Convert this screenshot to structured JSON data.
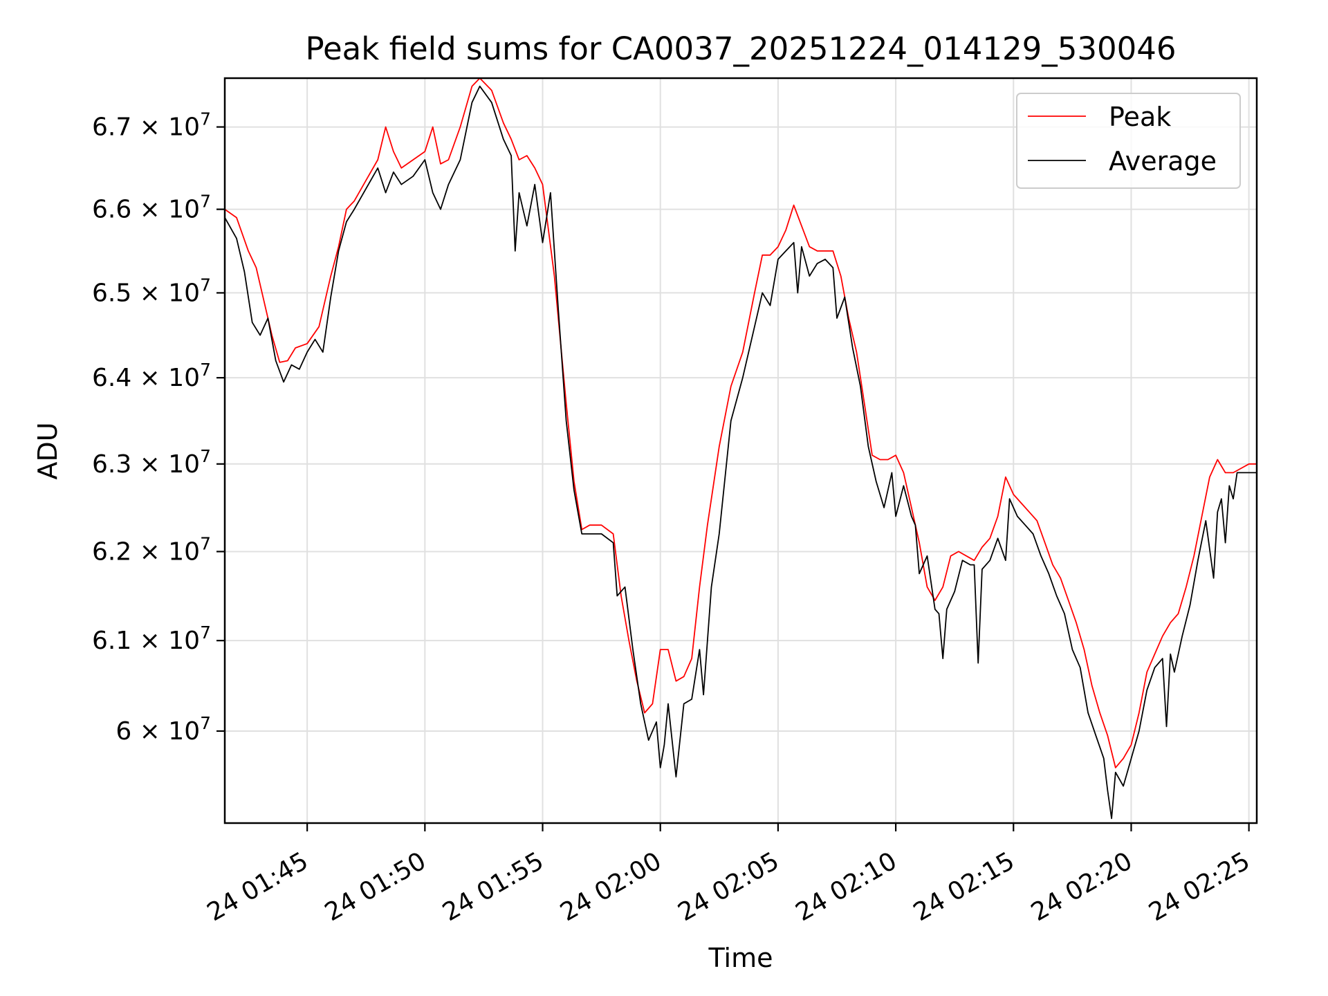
{
  "chart_data": {
    "type": "line",
    "title": "Peak field sums for CA0037_20251224_014129_530046",
    "xlabel": "Time",
    "ylabel": "ADU",
    "grid": true,
    "legend_position": "top-right",
    "xlim": [
      "01:41:30",
      "02:25:20"
    ],
    "ylim": [
      59000000,
      67600000
    ],
    "x_ticks": [
      {
        "time": "01:45",
        "label": "24 01:45"
      },
      {
        "time": "01:50",
        "label": "24 01:50"
      },
      {
        "time": "01:55",
        "label": "24 01:55"
      },
      {
        "time": "02:00",
        "label": "24 02:00"
      },
      {
        "time": "02:05",
        "label": "24 02:05"
      },
      {
        "time": "02:10",
        "label": "24 02:10"
      },
      {
        "time": "02:15",
        "label": "24 02:15"
      },
      {
        "time": "02:20",
        "label": "24 02:20"
      },
      {
        "time": "02:25",
        "label": "24 02:25"
      }
    ],
    "y_ticks": [
      {
        "value": 60000000,
        "mantissa": "6",
        "exponent": "7"
      },
      {
        "value": 61000000,
        "mantissa": "6.1",
        "exponent": "7"
      },
      {
        "value": 62000000,
        "mantissa": "6.2",
        "exponent": "7"
      },
      {
        "value": 63000000,
        "mantissa": "6.3",
        "exponent": "7"
      },
      {
        "value": 64000000,
        "mantissa": "6.4",
        "exponent": "7"
      },
      {
        "value": 65000000,
        "mantissa": "6.5",
        "exponent": "7"
      },
      {
        "value": 66000000,
        "mantissa": "6.6",
        "exponent": "7"
      },
      {
        "value": 67000000,
        "mantissa": "6.7",
        "exponent": "7"
      }
    ],
    "series": [
      {
        "name": "Peak",
        "color": "#ff0000",
        "points": [
          [
            "01:41:30",
            66.0
          ],
          [
            "01:42:00",
            65.9
          ],
          [
            "01:42:30",
            65.5
          ],
          [
            "01:42:50",
            65.3
          ],
          [
            "01:43:10",
            64.9
          ],
          [
            "01:43:30",
            64.5
          ],
          [
            "01:43:50",
            64.18
          ],
          [
            "01:44:10",
            64.2
          ],
          [
            "01:44:30",
            64.35
          ],
          [
            "01:45:00",
            64.4
          ],
          [
            "01:45:30",
            64.6
          ],
          [
            "01:46:00",
            65.2
          ],
          [
            "01:46:20",
            65.55
          ],
          [
            "01:46:40",
            66.0
          ],
          [
            "01:47:00",
            66.1
          ],
          [
            "01:47:30",
            66.35
          ],
          [
            "01:48:00",
            66.6
          ],
          [
            "01:48:20",
            67.0
          ],
          [
            "01:48:40",
            66.7
          ],
          [
            "01:49:00",
            66.5
          ],
          [
            "01:49:30",
            66.6
          ],
          [
            "01:50:00",
            66.7
          ],
          [
            "01:50:20",
            67.0
          ],
          [
            "01:50:40",
            66.55
          ],
          [
            "01:51:00",
            66.6
          ],
          [
            "01:51:30",
            67.0
          ],
          [
            "01:52:00",
            67.5
          ],
          [
            "01:52:20",
            67.6
          ],
          [
            "01:52:50",
            67.45
          ],
          [
            "01:53:20",
            67.05
          ],
          [
            "01:53:40",
            66.85
          ],
          [
            "01:54:00",
            66.6
          ],
          [
            "01:54:20",
            66.65
          ],
          [
            "01:54:40",
            66.5
          ],
          [
            "01:55:00",
            66.3
          ],
          [
            "01:55:30",
            65.2
          ],
          [
            "01:56:00",
            63.7
          ],
          [
            "01:56:20",
            62.8
          ],
          [
            "01:56:40",
            62.25
          ],
          [
            "01:57:00",
            62.3
          ],
          [
            "01:57:30",
            62.3
          ],
          [
            "01:58:00",
            62.2
          ],
          [
            "01:58:20",
            61.5
          ],
          [
            "01:58:40",
            61.0
          ],
          [
            "01:59:00",
            60.55
          ],
          [
            "01:59:20",
            60.2
          ],
          [
            "01:59:40",
            60.3
          ],
          [
            "02:00:00",
            60.9
          ],
          [
            "02:00:20",
            60.9
          ],
          [
            "02:00:40",
            60.55
          ],
          [
            "02:01:00",
            60.6
          ],
          [
            "02:01:20",
            60.8
          ],
          [
            "02:01:40",
            61.6
          ],
          [
            "02:02:00",
            62.3
          ],
          [
            "02:02:30",
            63.2
          ],
          [
            "02:03:00",
            63.9
          ],
          [
            "02:03:30",
            64.3
          ],
          [
            "02:04:00",
            65.0
          ],
          [
            "02:04:20",
            65.45
          ],
          [
            "02:04:40",
            65.45
          ],
          [
            "02:05:00",
            65.55
          ],
          [
            "02:05:20",
            65.75
          ],
          [
            "02:05:40",
            66.05
          ],
          [
            "02:06:00",
            65.8
          ],
          [
            "02:06:20",
            65.55
          ],
          [
            "02:06:40",
            65.5
          ],
          [
            "02:07:00",
            65.5
          ],
          [
            "02:07:20",
            65.5
          ],
          [
            "02:07:40",
            65.2
          ],
          [
            "02:08:00",
            64.7
          ],
          [
            "02:08:20",
            64.3
          ],
          [
            "02:08:40",
            63.7
          ],
          [
            "02:09:00",
            63.1
          ],
          [
            "02:09:20",
            63.05
          ],
          [
            "02:09:40",
            63.05
          ],
          [
            "02:10:00",
            63.1
          ],
          [
            "02:10:20",
            62.9
          ],
          [
            "02:10:40",
            62.5
          ],
          [
            "02:11:00",
            62.1
          ],
          [
            "02:11:20",
            61.6
          ],
          [
            "02:11:40",
            61.45
          ],
          [
            "02:12:00",
            61.6
          ],
          [
            "02:12:20",
            61.95
          ],
          [
            "02:12:40",
            62.0
          ],
          [
            "02:13:00",
            61.95
          ],
          [
            "02:13:20",
            61.9
          ],
          [
            "02:13:40",
            62.05
          ],
          [
            "02:14:00",
            62.15
          ],
          [
            "02:14:20",
            62.4
          ],
          [
            "02:14:40",
            62.85
          ],
          [
            "02:15:00",
            62.65
          ],
          [
            "02:15:20",
            62.55
          ],
          [
            "02:15:40",
            62.45
          ],
          [
            "02:16:00",
            62.35
          ],
          [
            "02:16:20",
            62.1
          ],
          [
            "02:16:40",
            61.85
          ],
          [
            "02:17:00",
            61.7
          ],
          [
            "02:17:20",
            61.45
          ],
          [
            "02:17:40",
            61.2
          ],
          [
            "02:18:00",
            60.9
          ],
          [
            "02:18:20",
            60.5
          ],
          [
            "02:18:40",
            60.2
          ],
          [
            "02:19:00",
            59.95
          ],
          [
            "02:19:20",
            59.6
          ],
          [
            "02:19:40",
            59.7
          ],
          [
            "02:20:00",
            59.85
          ],
          [
            "02:20:20",
            60.2
          ],
          [
            "02:20:40",
            60.65
          ],
          [
            "02:21:00",
            60.85
          ],
          [
            "02:21:20",
            61.05
          ],
          [
            "02:21:40",
            61.2
          ],
          [
            "02:22:00",
            61.3
          ],
          [
            "02:22:20",
            61.6
          ],
          [
            "02:22:40",
            61.95
          ],
          [
            "02:23:00",
            62.4
          ],
          [
            "02:23:20",
            62.85
          ],
          [
            "02:23:40",
            63.05
          ],
          [
            "02:24:00",
            62.9
          ],
          [
            "02:24:20",
            62.9
          ],
          [
            "02:24:40",
            62.95
          ],
          [
            "02:25:00",
            63.0
          ],
          [
            "02:25:20",
            63.0
          ]
        ]
      },
      {
        "name": "Average",
        "color": "#000000",
        "points": [
          [
            "01:41:30",
            65.9
          ],
          [
            "01:42:00",
            65.65
          ],
          [
            "01:42:20",
            65.25
          ],
          [
            "01:42:40",
            64.65
          ],
          [
            "01:43:00",
            64.5
          ],
          [
            "01:43:20",
            64.7
          ],
          [
            "01:43:40",
            64.2
          ],
          [
            "01:44:00",
            63.95
          ],
          [
            "01:44:20",
            64.15
          ],
          [
            "01:44:40",
            64.1
          ],
          [
            "01:45:00",
            64.3
          ],
          [
            "01:45:20",
            64.45
          ],
          [
            "01:45:40",
            64.3
          ],
          [
            "01:46:00",
            64.95
          ],
          [
            "01:46:20",
            65.5
          ],
          [
            "01:46:40",
            65.85
          ],
          [
            "01:47:00",
            66.0
          ],
          [
            "01:47:30",
            66.25
          ],
          [
            "01:48:00",
            66.5
          ],
          [
            "01:48:20",
            66.2
          ],
          [
            "01:48:40",
            66.45
          ],
          [
            "01:49:00",
            66.3
          ],
          [
            "01:49:30",
            66.4
          ],
          [
            "01:50:00",
            66.6
          ],
          [
            "01:50:20",
            66.2
          ],
          [
            "01:50:40",
            66.0
          ],
          [
            "01:51:00",
            66.3
          ],
          [
            "01:51:30",
            66.6
          ],
          [
            "01:52:00",
            67.3
          ],
          [
            "01:52:20",
            67.5
          ],
          [
            "01:52:50",
            67.3
          ],
          [
            "01:53:20",
            66.85
          ],
          [
            "01:53:40",
            66.65
          ],
          [
            "01:53:50",
            65.5
          ],
          [
            "01:54:00",
            66.2
          ],
          [
            "01:54:20",
            65.8
          ],
          [
            "01:54:40",
            66.3
          ],
          [
            "01:55:00",
            65.6
          ],
          [
            "01:55:20",
            66.2
          ],
          [
            "01:55:40",
            64.8
          ],
          [
            "01:56:00",
            63.5
          ],
          [
            "01:56:20",
            62.7
          ],
          [
            "01:56:40",
            62.2
          ],
          [
            "01:57:00",
            62.2
          ],
          [
            "01:57:30",
            62.2
          ],
          [
            "01:58:00",
            62.1
          ],
          [
            "01:58:10",
            61.5
          ],
          [
            "01:58:30",
            61.6
          ],
          [
            "01:58:50",
            60.9
          ],
          [
            "01:59:10",
            60.3
          ],
          [
            "01:59:30",
            59.9
          ],
          [
            "01:59:50",
            60.1
          ],
          [
            "02:00:00",
            59.6
          ],
          [
            "02:00:10",
            59.85
          ],
          [
            "02:00:20",
            60.3
          ],
          [
            "02:00:40",
            59.5
          ],
          [
            "02:01:00",
            60.3
          ],
          [
            "02:01:20",
            60.35
          ],
          [
            "02:01:40",
            60.9
          ],
          [
            "02:01:50",
            60.4
          ],
          [
            "02:02:10",
            61.6
          ],
          [
            "02:02:30",
            62.2
          ],
          [
            "02:03:00",
            63.5
          ],
          [
            "02:03:30",
            64.0
          ],
          [
            "02:04:00",
            64.6
          ],
          [
            "02:04:20",
            65.0
          ],
          [
            "02:04:40",
            64.85
          ],
          [
            "02:05:00",
            65.4
          ],
          [
            "02:05:20",
            65.5
          ],
          [
            "02:05:40",
            65.6
          ],
          [
            "02:05:50",
            65.0
          ],
          [
            "02:06:00",
            65.55
          ],
          [
            "02:06:20",
            65.2
          ],
          [
            "02:06:40",
            65.35
          ],
          [
            "02:07:00",
            65.4
          ],
          [
            "02:07:20",
            65.3
          ],
          [
            "02:07:30",
            64.7
          ],
          [
            "02:07:50",
            64.95
          ],
          [
            "02:08:10",
            64.35
          ],
          [
            "02:08:30",
            63.9
          ],
          [
            "02:08:50",
            63.2
          ],
          [
            "02:09:10",
            62.8
          ],
          [
            "02:09:30",
            62.5
          ],
          [
            "02:09:50",
            62.9
          ],
          [
            "02:10:00",
            62.4
          ],
          [
            "02:10:20",
            62.75
          ],
          [
            "02:10:40",
            62.4
          ],
          [
            "02:10:50",
            62.3
          ],
          [
            "02:11:00",
            61.75
          ],
          [
            "02:11:20",
            61.95
          ],
          [
            "02:11:40",
            61.35
          ],
          [
            "02:11:50",
            61.3
          ],
          [
            "02:12:00",
            60.8
          ],
          [
            "02:12:10",
            61.35
          ],
          [
            "02:12:30",
            61.55
          ],
          [
            "02:12:50",
            61.9
          ],
          [
            "02:13:10",
            61.85
          ],
          [
            "02:13:20",
            61.85
          ],
          [
            "02:13:30",
            60.75
          ],
          [
            "02:13:40",
            61.8
          ],
          [
            "02:14:00",
            61.9
          ],
          [
            "02:14:20",
            62.15
          ],
          [
            "02:14:40",
            61.9
          ],
          [
            "02:14:50",
            62.6
          ],
          [
            "02:15:10",
            62.4
          ],
          [
            "02:15:30",
            62.3
          ],
          [
            "02:15:50",
            62.2
          ],
          [
            "02:16:10",
            61.95
          ],
          [
            "02:16:30",
            61.75
          ],
          [
            "02:16:50",
            61.5
          ],
          [
            "02:17:10",
            61.3
          ],
          [
            "02:17:30",
            60.9
          ],
          [
            "02:17:50",
            60.7
          ],
          [
            "02:18:10",
            60.2
          ],
          [
            "02:18:30",
            59.95
          ],
          [
            "02:18:50",
            59.7
          ],
          [
            "02:19:00",
            59.35
          ],
          [
            "02:19:10",
            59.05
          ],
          [
            "02:19:20",
            59.55
          ],
          [
            "02:19:40",
            59.4
          ],
          [
            "02:20:00",
            59.7
          ],
          [
            "02:20:20",
            60.0
          ],
          [
            "02:20:40",
            60.45
          ],
          [
            "02:21:00",
            60.7
          ],
          [
            "02:21:20",
            60.8
          ],
          [
            "02:21:30",
            60.05
          ],
          [
            "02:21:40",
            60.85
          ],
          [
            "02:21:50",
            60.65
          ],
          [
            "02:22:10",
            61.05
          ],
          [
            "02:22:30",
            61.4
          ],
          [
            "02:22:50",
            61.9
          ],
          [
            "02:23:10",
            62.35
          ],
          [
            "02:23:30",
            61.7
          ],
          [
            "02:23:40",
            62.45
          ],
          [
            "02:23:50",
            62.6
          ],
          [
            "02:24:00",
            62.1
          ],
          [
            "02:24:10",
            62.75
          ],
          [
            "02:24:20",
            62.6
          ],
          [
            "02:24:30",
            62.9
          ],
          [
            "02:24:40",
            62.9
          ],
          [
            "02:25:00",
            62.9
          ],
          [
            "02:25:20",
            62.9
          ]
        ]
      }
    ]
  }
}
